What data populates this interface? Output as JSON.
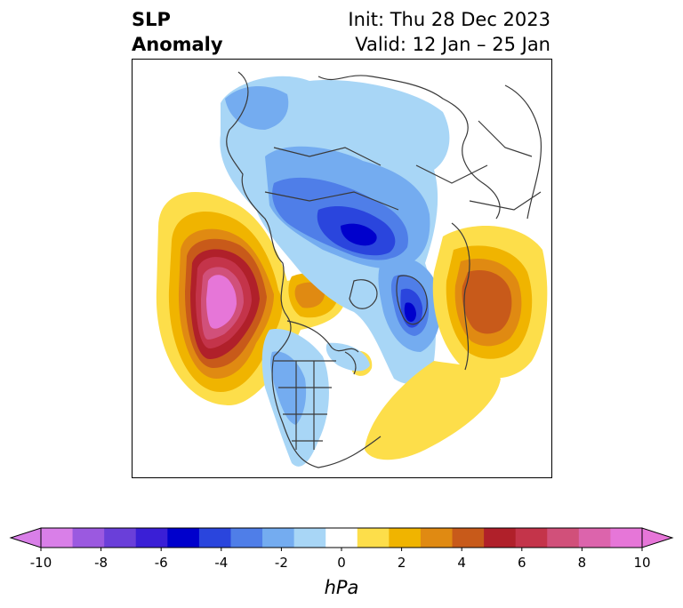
{
  "title": {
    "left_line1": "SLP",
    "left_line2": "Anomaly",
    "right_line1": "Init: Thu 28 Dec 2023",
    "right_line2": "Valid: 12 Jan – 25 Jan"
  },
  "colorbar": {
    "unit_label": "hPa",
    "ticks": [
      "-10",
      "-8",
      "-6",
      "-4",
      "-2",
      "0",
      "2",
      "4",
      "6",
      "8",
      "10"
    ],
    "colors": [
      "#d97fe8",
      "#9b59e0",
      "#6a3fd9",
      "#3a1fd6",
      "#0000cc",
      "#2a45dd",
      "#4f7ee8",
      "#74acf0",
      "#a8d6f6",
      "#ffffff",
      "#fdde4a",
      "#f0b400",
      "#e08a12",
      "#c85a1a",
      "#b0202a",
      "#c4344a",
      "#d1507a",
      "#dc64ac",
      "#e676d8"
    ],
    "under_color": "#d97fe8",
    "over_color": "#e676d8"
  }
}
